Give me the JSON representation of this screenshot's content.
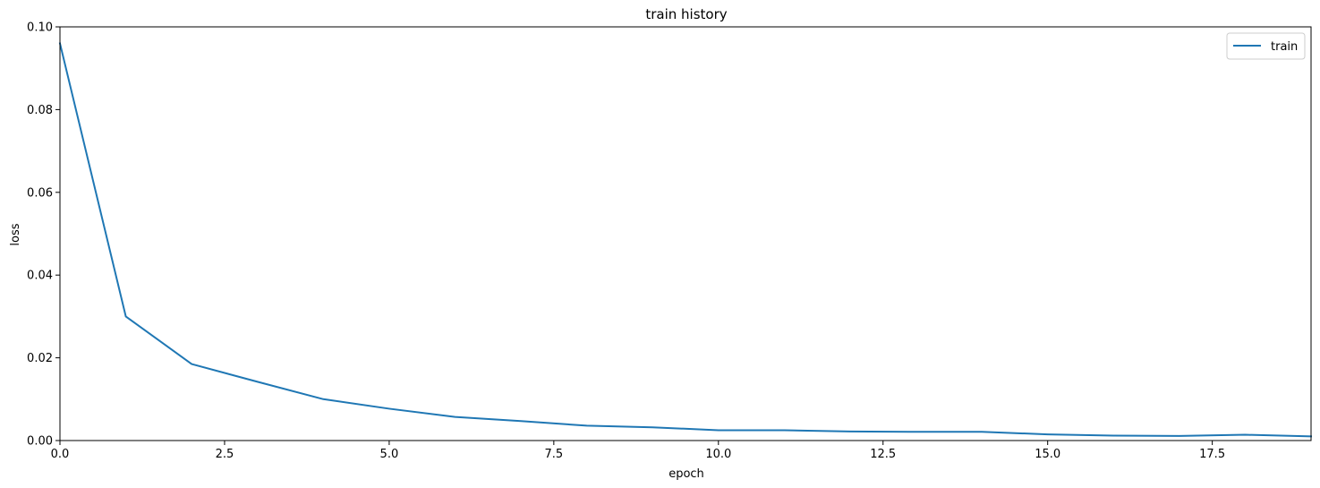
{
  "chart_data": {
    "type": "line",
    "title": "train history",
    "xlabel": "epoch",
    "ylabel": "loss",
    "xlim": [
      0,
      19
    ],
    "ylim": [
      0,
      0.1
    ],
    "x_ticks": [
      0,
      2.5,
      5,
      7.5,
      10,
      12.5,
      15,
      17.5
    ],
    "x_tick_labels": [
      "0.0",
      "2.5",
      "5.0",
      "7.5",
      "10.0",
      "12.5",
      "15.0",
      "17.5"
    ],
    "y_ticks": [
      0,
      0.02,
      0.04,
      0.06,
      0.08,
      0.1
    ],
    "y_tick_labels": [
      "0.00",
      "0.02",
      "0.04",
      "0.06",
      "0.08",
      "0.10"
    ],
    "grid": false,
    "legend_position": "top-right",
    "series": [
      {
        "name": "train",
        "color": "#1f77b4",
        "x": [
          0,
          1,
          2,
          3,
          4,
          5,
          6,
          7,
          8,
          9,
          10,
          11,
          12,
          13,
          14,
          15,
          16,
          17,
          18,
          19
        ],
        "values": [
          0.096,
          0.03,
          0.0185,
          0.0142,
          0.01,
          0.0077,
          0.0057,
          0.0047,
          0.0036,
          0.0032,
          0.0025,
          0.0025,
          0.0022,
          0.0021,
          0.0021,
          0.0015,
          0.0012,
          0.0011,
          0.0014,
          0.001
        ]
      }
    ]
  }
}
